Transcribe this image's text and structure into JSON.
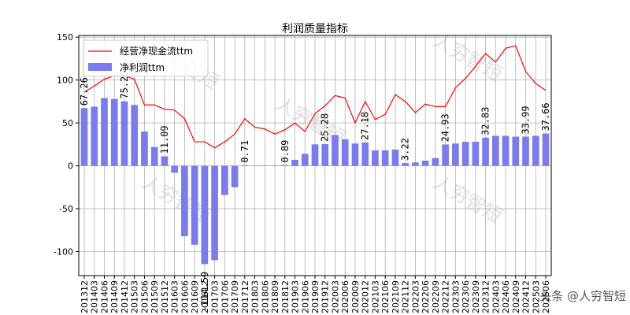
{
  "chart_data": {
    "type": "bar",
    "title": "利润质量指标",
    "categories": [
      "201312",
      "201403",
      "201406",
      "201409",
      "201412",
      "201503",
      "201506",
      "201509",
      "201512",
      "201603",
      "201606",
      "201609",
      "201612",
      "201703",
      "201706",
      "201709",
      "201712",
      "201803",
      "201806",
      "201809",
      "201812",
      "201903",
      "201906",
      "201909",
      "201912",
      "202003",
      "202006",
      "202009",
      "202012",
      "202103",
      "202106",
      "202109",
      "202112",
      "202203",
      "202206",
      "202209",
      "202212",
      "202303",
      "202306",
      "202309",
      "202312",
      "202403",
      "202406",
      "202409",
      "202412",
      "202503",
      "202506"
    ],
    "series": [
      {
        "name": "净利润ttm",
        "type": "bar",
        "color": "#7b7bf0",
        "values": [
          67.26,
          69,
          79,
          78,
          75.2,
          71,
          40,
          22,
          11.09,
          -8,
          -82,
          -92,
          -114.59,
          -110,
          -34,
          -25,
          0.71,
          0,
          0.3,
          0.5,
          0.89,
          7,
          14,
          25,
          25.28,
          36,
          31,
          26,
          27.18,
          18,
          18,
          19,
          3.22,
          4,
          6,
          9,
          24.93,
          26,
          28,
          28,
          32.83,
          35,
          35,
          34,
          33.99,
          35,
          37.66
        ]
      },
      {
        "name": "经营净现金流ttm",
        "type": "line",
        "color": "#ff0000",
        "values": [
          86,
          93,
          101,
          105,
          105,
          101,
          71,
          71,
          66,
          65,
          55,
          28,
          28,
          21,
          28,
          37,
          55,
          45,
          43,
          37,
          42,
          50,
          40,
          61,
          70,
          82,
          79,
          50,
          75,
          54,
          60,
          83,
          75,
          62,
          72,
          69,
          69,
          91,
          102,
          116,
          131,
          121,
          137,
          140,
          110,
          96,
          88
        ]
      }
    ],
    "data_labels": [
      {
        "index": 0,
        "text": "67.26"
      },
      {
        "index": 4,
        "text": "75.2"
      },
      {
        "index": 8,
        "text": "11.09"
      },
      {
        "index": 12,
        "text": "-114.59"
      },
      {
        "index": 16,
        "text": "0.71"
      },
      {
        "index": 20,
        "text": "0.89"
      },
      {
        "index": 24,
        "text": "25.28"
      },
      {
        "index": 28,
        "text": "27.18"
      },
      {
        "index": 32,
        "text": "3.22"
      },
      {
        "index": 36,
        "text": "24.93"
      },
      {
        "index": 40,
        "text": "32.83"
      },
      {
        "index": 44,
        "text": "33.99"
      },
      {
        "index": 46,
        "text": "37.66"
      }
    ],
    "ylim": [
      -128,
      152
    ],
    "yticks": [
      -100,
      -50,
      0,
      50,
      100,
      150
    ],
    "grid": true,
    "legend": "top-left"
  },
  "watermark": {
    "text": "人穷智短",
    "corner_text": "头条 @人穷智短"
  }
}
